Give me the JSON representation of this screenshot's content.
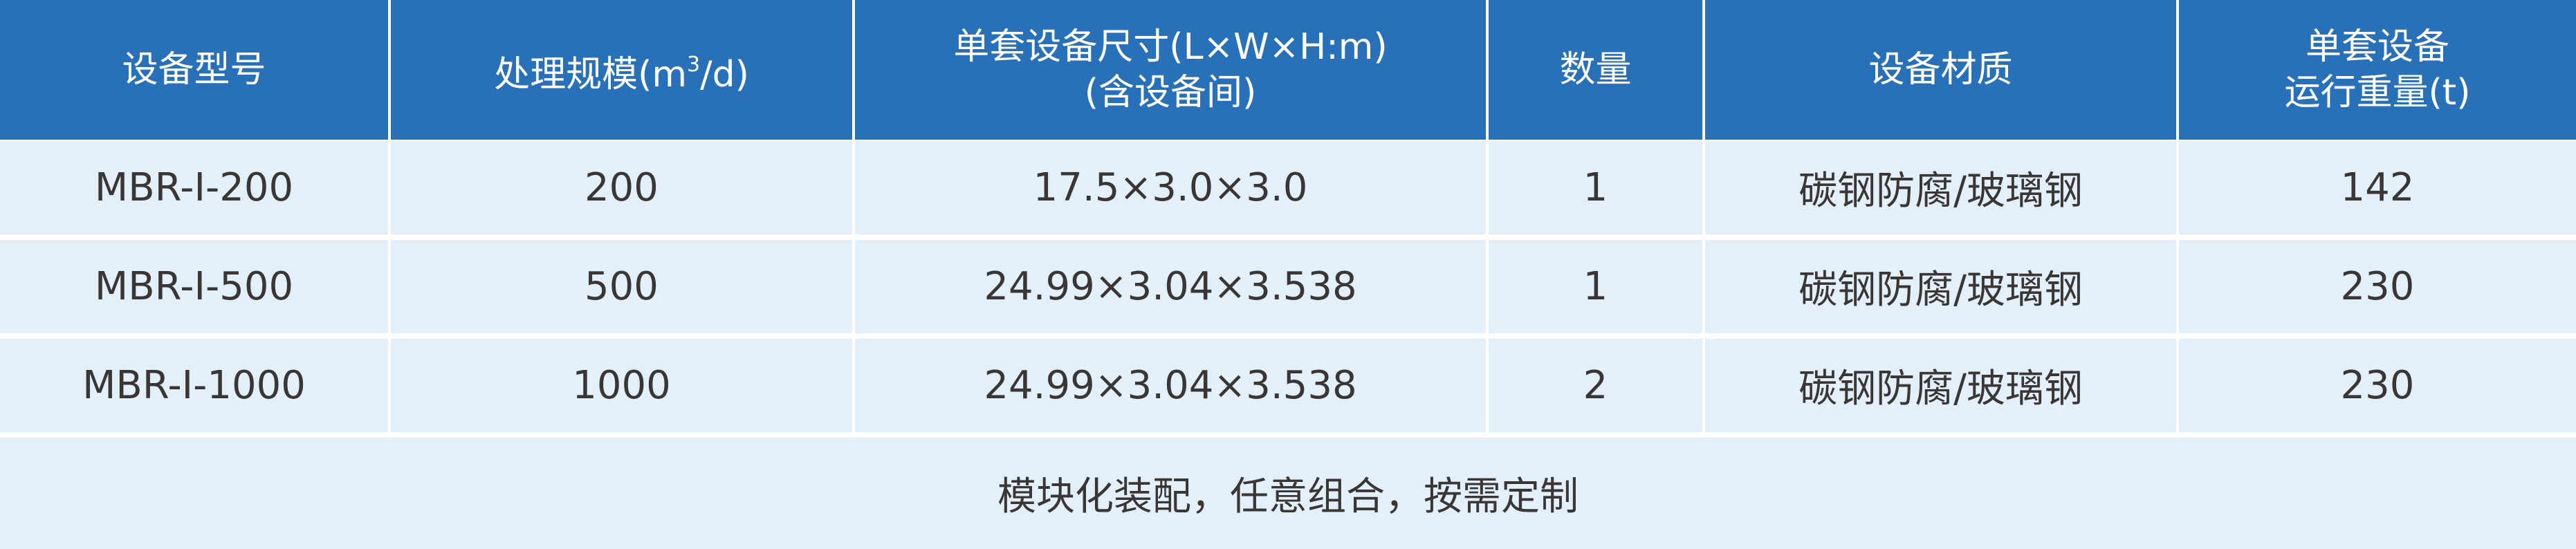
{
  "header": {
    "columns": [
      {
        "label": "设备型号"
      },
      {
        "label_main": "处理规模(m",
        "label_sup": "3",
        "label_end": "/d)"
      },
      {
        "line1": "单套设备尺寸(L×W×H:m)",
        "line2": "(含设备间)"
      },
      {
        "label": "数量"
      },
      {
        "label": "设备材质"
      },
      {
        "line1": "单套设备",
        "line2": "运行重量(t)"
      }
    ]
  },
  "rows": [
    {
      "model": "MBR-I-200",
      "capacity": "200",
      "size": "17.5×3.0×3.0",
      "quantity": "1",
      "material": "碳钢防腐/玻璃钢",
      "weight": "142"
    },
    {
      "model": "MBR-I-500",
      "capacity": "500",
      "size": "24.99×3.04×3.538",
      "quantity": "1",
      "material": "碳钢防腐/玻璃钢",
      "weight": "230"
    },
    {
      "model": "MBR-I-1000",
      "capacity": "1000",
      "size": "24.99×3.04×3.538",
      "quantity": "2",
      "material": "碳钢防腐/玻璃钢",
      "weight": "230"
    }
  ],
  "footer": {
    "text": "模块化装配，任意组合，按需定制"
  },
  "colors": {
    "header_bg": "#2870b8",
    "row_bg": "#e3f0fa",
    "text": "#3a3636"
  }
}
